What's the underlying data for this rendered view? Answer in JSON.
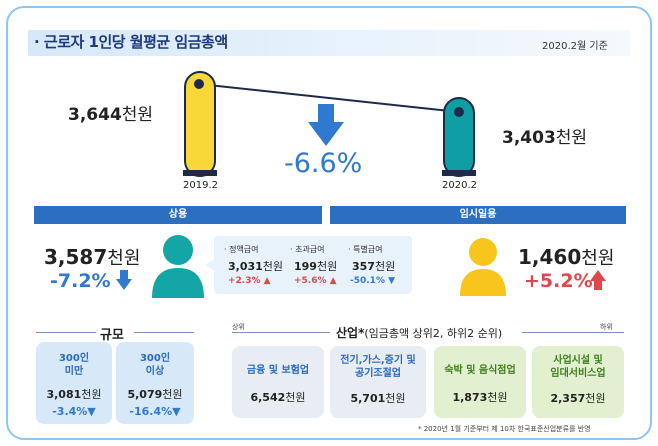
{
  "title": "· 근로자 1인당 월평균 임금총액",
  "date": "2020.2월 기준",
  "overall": {
    "prev_amount": "3,644",
    "prev_unit": "천원",
    "prev_label": "2019.2",
    "curr_amount": "3,403",
    "curr_unit": "천원",
    "curr_label": "2020.2",
    "change": "-6.6%",
    "prev_value": 3644,
    "curr_value": 3403
  },
  "regular": {
    "header": "상용",
    "amount": "3,587",
    "unit": "천원",
    "change": "-7.2%",
    "items": [
      {
        "label": "· 정액급여",
        "value": "3,031",
        "unit": "천원",
        "change": "+2.3%"
      },
      {
        "label": "· 초과급여",
        "value": "199",
        "unit": "천원",
        "change": "+5.6%"
      },
      {
        "label": "· 특별급여",
        "value": "357",
        "unit": "천원",
        "change": "-50.1%"
      }
    ]
  },
  "temporary": {
    "header": "임시일용",
    "amount": "1,460",
    "unit": "천원",
    "change": "+5.2%"
  },
  "size": {
    "heading": "규모",
    "cards": [
      {
        "title_line1": "300인",
        "title_line2": "미만",
        "value": "3,081",
        "unit": "천원",
        "change": "-3.4%"
      },
      {
        "title_line1": "300인",
        "title_line2": "이상",
        "value": "5,079",
        "unit": "천원",
        "change": "-16.4%"
      }
    ]
  },
  "industry": {
    "heading": "산업",
    "heading_mark": "*",
    "heading_note": "(임금총액 상위2, 하위2 순위)",
    "top_label": "상위",
    "bottom_label": "하위",
    "cards": [
      {
        "title_line1": "금융 및 보험업",
        "title_line2": "",
        "value": "6,542",
        "unit": "천원"
      },
      {
        "title_line1": "전기,가스,증기 및",
        "title_line2": "공기조절업",
        "value": "5,701",
        "unit": "천원"
      },
      {
        "title_line1": "숙박 및 음식점업",
        "title_line2": "",
        "value": "1,873",
        "unit": "천원"
      },
      {
        "title_line1": "사업시설 및",
        "title_line2": "임대서비스업",
        "value": "2,357",
        "unit": "천원"
      }
    ],
    "footnote": "* 2020년 1월 기준부터 제 10차 한국표준산업분류를 반영"
  },
  "colors": {
    "accent_blue": "#2c6fc1",
    "negative": "#2f7ad0",
    "positive": "#e0474c",
    "tube_yellow": "#f7d836",
    "tube_teal": "#0f9ea3",
    "person_teal": "#14a6a6",
    "person_yellow": "#f7c51c"
  },
  "icons": [
    "down-arrow-icon",
    "up-arrow-icon",
    "person-icon",
    "thermometer-icon"
  ]
}
